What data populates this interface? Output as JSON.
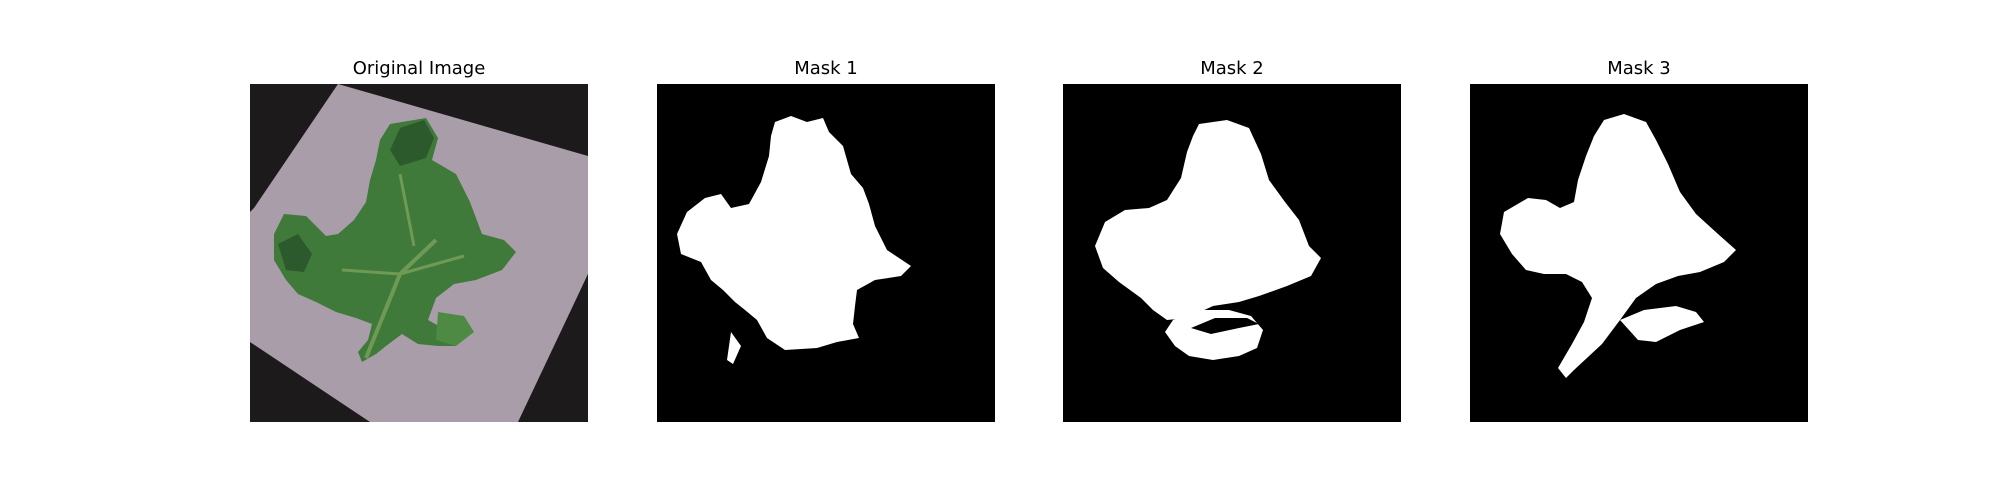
{
  "figure": {
    "panels": [
      {
        "title": "Original Image",
        "kind": "photo"
      },
      {
        "title": "Mask 1",
        "kind": "mask"
      },
      {
        "title": "Mask 2",
        "kind": "mask"
      },
      {
        "title": "Mask 3",
        "kind": "mask"
      }
    ]
  },
  "colors": {
    "background": "#ffffff",
    "mask_background": "#000000",
    "mask_foreground": "#ffffff",
    "surface_lavender": "#a79aa8",
    "leaf_green": "#3f7a3a",
    "leaf_dark_green": "#2c5a2c"
  }
}
